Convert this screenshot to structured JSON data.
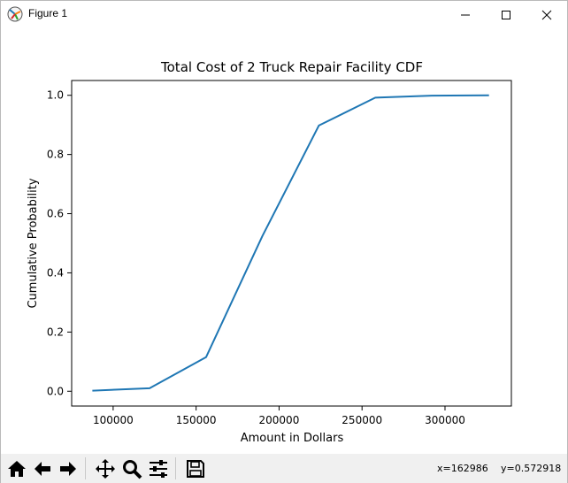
{
  "window": {
    "title": "Figure 1",
    "controls": [
      "minimize",
      "maximize",
      "close"
    ]
  },
  "chart_data": {
    "type": "line",
    "title": "Total Cost of 2 Truck Repair Facility CDF",
    "xlabel": "Amount in Dollars",
    "ylabel": "Cumulative Probability",
    "xlim": [
      75000,
      340000
    ],
    "ylim": [
      -0.05,
      1.05
    ],
    "x_ticks": [
      100000,
      150000,
      200000,
      250000,
      300000
    ],
    "x_tick_labels": [
      "100000",
      "150000",
      "200000",
      "250000",
      "300000"
    ],
    "y_ticks": [
      0.0,
      0.2,
      0.4,
      0.6,
      0.8,
      1.0
    ],
    "y_tick_labels": [
      "0.0",
      "0.2",
      "0.4",
      "0.6",
      "0.8",
      "1.0"
    ],
    "grid": false,
    "series": [
      {
        "color": "#1f77b4",
        "x": [
          88000,
          122000,
          156000,
          190000,
          224000,
          258000,
          292000,
          326000
        ],
        "y": [
          0.002,
          0.01,
          0.115,
          0.525,
          0.898,
          0.992,
          0.999,
          1.0
        ]
      }
    ]
  },
  "toolbar": {
    "tools": [
      "home-icon",
      "back-arrow-icon",
      "forward-arrow-icon",
      "pan-icon",
      "zoom-icon",
      "configure-subplots-icon",
      "save-icon"
    ],
    "coord_x": "x=162986",
    "coord_y": "y=0.572918"
  }
}
